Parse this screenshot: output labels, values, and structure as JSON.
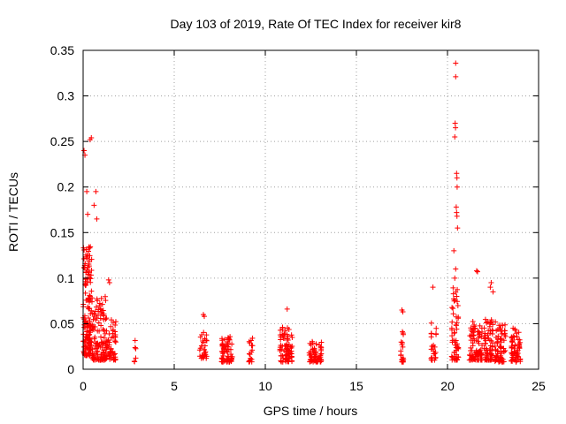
{
  "chart_data": {
    "type": "scatter",
    "title": "Day 103 of 2019, Rate Of TEC Index for receiver kir8",
    "xlabel": "GPS time / hours",
    "ylabel": "ROTI / TECUs",
    "xlim": [
      0,
      25
    ],
    "ylim": [
      0,
      0.35
    ],
    "x_ticks": [
      0,
      5,
      10,
      15,
      20,
      25
    ],
    "x_tick_labels": [
      "0",
      "5",
      "10",
      "15",
      "20",
      "25"
    ],
    "y_ticks": [
      0,
      0.05,
      0.1,
      0.15,
      0.2,
      0.25,
      0.3,
      0.35
    ],
    "y_tick_labels": [
      "0",
      "0.05",
      "0.1",
      "0.15",
      "0.2",
      "0.25",
      "0.3",
      "0.35"
    ],
    "grid": true,
    "marker": "+",
    "color": "#ff0000",
    "clusters": [
      {
        "x_start": 0.0,
        "x_end": 0.5,
        "y_base": 0.015,
        "y_spread": 0.12,
        "count": 160
      },
      {
        "x_start": 0.5,
        "x_end": 1.3,
        "y_base": 0.01,
        "y_spread": 0.07,
        "count": 120
      },
      {
        "x_start": 1.3,
        "x_end": 1.8,
        "y_base": 0.01,
        "y_spread": 0.045,
        "count": 50
      },
      {
        "x_start": 2.8,
        "x_end": 2.9,
        "y_base": 0.008,
        "y_spread": 0.025,
        "count": 6
      },
      {
        "x_start": 6.4,
        "x_end": 6.8,
        "y_base": 0.012,
        "y_spread": 0.035,
        "count": 30
      },
      {
        "x_start": 7.6,
        "x_end": 8.2,
        "y_base": 0.008,
        "y_spread": 0.03,
        "count": 70
      },
      {
        "x_start": 9.1,
        "x_end": 9.3,
        "y_base": 0.008,
        "y_spread": 0.028,
        "count": 18
      },
      {
        "x_start": 10.8,
        "x_end": 11.5,
        "y_base": 0.008,
        "y_spread": 0.04,
        "count": 80
      },
      {
        "x_start": 12.4,
        "x_end": 13.1,
        "y_base": 0.008,
        "y_spread": 0.024,
        "count": 60
      },
      {
        "x_start": 17.4,
        "x_end": 17.6,
        "y_base": 0.008,
        "y_spread": 0.035,
        "count": 20
      },
      {
        "x_start": 19.1,
        "x_end": 19.4,
        "y_base": 0.01,
        "y_spread": 0.045,
        "count": 25
      },
      {
        "x_start": 20.2,
        "x_end": 20.6,
        "y_base": 0.01,
        "y_spread": 0.08,
        "count": 60
      },
      {
        "x_start": 21.2,
        "x_end": 21.9,
        "y_base": 0.01,
        "y_spread": 0.045,
        "count": 90
      },
      {
        "x_start": 22.0,
        "x_end": 22.5,
        "y_base": 0.01,
        "y_spread": 0.045,
        "count": 70
      },
      {
        "x_start": 22.6,
        "x_end": 23.2,
        "y_base": 0.008,
        "y_spread": 0.045,
        "count": 70
      },
      {
        "x_start": 23.5,
        "x_end": 24.0,
        "y_base": 0.008,
        "y_spread": 0.035,
        "count": 60
      }
    ],
    "notable_points": [
      [
        0.05,
        0.24
      ],
      [
        0.1,
        0.235
      ],
      [
        0.45,
        0.254
      ],
      [
        0.38,
        0.252
      ],
      [
        0.2,
        0.195
      ],
      [
        0.25,
        0.17
      ],
      [
        0.7,
        0.195
      ],
      [
        0.6,
        0.18
      ],
      [
        0.75,
        0.165
      ],
      [
        1.4,
        0.098
      ],
      [
        1.45,
        0.095
      ],
      [
        6.6,
        0.06
      ],
      [
        6.65,
        0.058
      ],
      [
        11.2,
        0.066
      ],
      [
        17.5,
        0.065
      ],
      [
        17.55,
        0.063
      ],
      [
        19.2,
        0.09
      ],
      [
        20.45,
        0.336
      ],
      [
        20.45,
        0.321
      ],
      [
        20.42,
        0.27
      ],
      [
        20.44,
        0.265
      ],
      [
        20.4,
        0.255
      ],
      [
        20.5,
        0.215
      ],
      [
        20.52,
        0.21
      ],
      [
        20.53,
        0.2
      ],
      [
        20.48,
        0.178
      ],
      [
        20.5,
        0.172
      ],
      [
        20.52,
        0.168
      ],
      [
        20.55,
        0.155
      ],
      [
        20.35,
        0.13
      ],
      [
        20.45,
        0.11
      ],
      [
        20.4,
        0.1
      ],
      [
        21.6,
        0.108
      ],
      [
        21.65,
        0.107
      ],
      [
        22.4,
        0.095
      ],
      [
        22.35,
        0.09
      ],
      [
        22.5,
        0.085
      ],
      [
        23.6,
        0.045
      ],
      [
        23.7,
        0.044
      ]
    ]
  }
}
